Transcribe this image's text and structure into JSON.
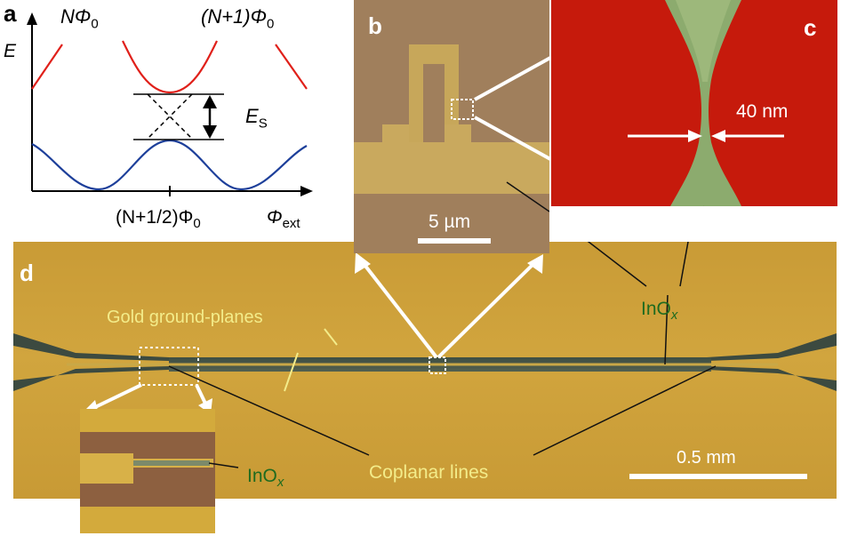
{
  "panel_labels": {
    "a": "a",
    "b": "b",
    "c": "c",
    "d": "d"
  },
  "panel_a": {
    "y_axis_label": "E",
    "x_axis_label_main": "Φ",
    "x_axis_label_sub": "ext",
    "left_curve_label": "NΦ",
    "left_curve_sub": "0",
    "right_curve_label": "(N+1)Φ",
    "right_curve_sub": "0",
    "tick_label": "(N+1/2)Φ",
    "tick_sub": "0",
    "gap_label": "E",
    "gap_sub": "S"
  },
  "panel_b": {
    "scale_bar": "5 µm"
  },
  "panel_c": {
    "scale_text": "40 nm"
  },
  "panel_d": {
    "gold_label": "Gold ground-planes",
    "coplanar_label": "Coplanar lines",
    "inox_main": "InO",
    "inox_sub": "x",
    "scale_bar": "0.5 mm"
  },
  "colors": {
    "red_curve": "#e0201a",
    "blue_curve": "#1d3f9a",
    "gold": "#cfa23c",
    "inox_text": "#1f6b1f",
    "label_yellow": "#f3ec8a"
  }
}
